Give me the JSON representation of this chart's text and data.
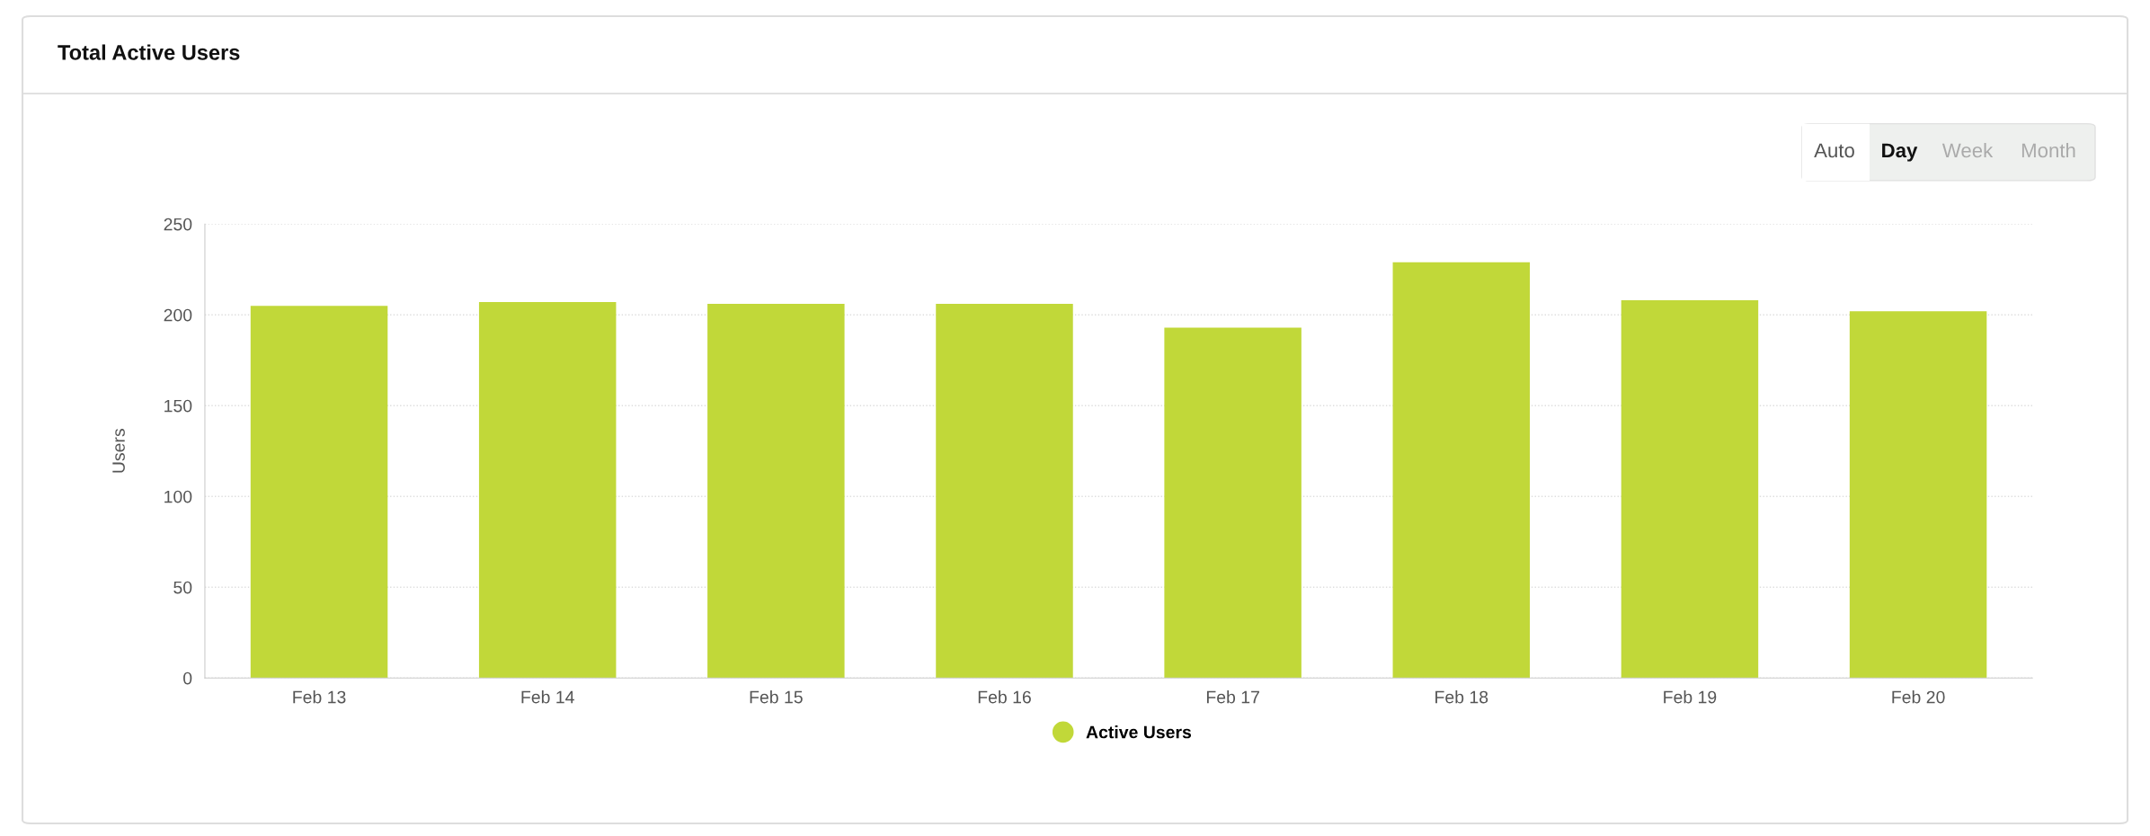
{
  "chart_data": {
    "type": "bar",
    "title": "Total Active Users",
    "ylabel": "Users",
    "categories": [
      "Feb 13",
      "Feb 14",
      "Feb 15",
      "Feb 16",
      "Feb 17",
      "Feb 18",
      "Feb 19",
      "Feb 20"
    ],
    "series": [
      {
        "name": "Active Users",
        "color": "#c1d839",
        "values": [
          205,
          207,
          206,
          206,
          193,
          229,
          208,
          202
        ]
      }
    ],
    "ylim": [
      0,
      250
    ],
    "yticks": [
      0,
      50,
      100,
      150,
      200,
      250
    ],
    "grid": "y",
    "legend": "bottom",
    "annotations": [
      "Auto",
      "Day",
      "Week",
      "Month"
    ]
  }
}
